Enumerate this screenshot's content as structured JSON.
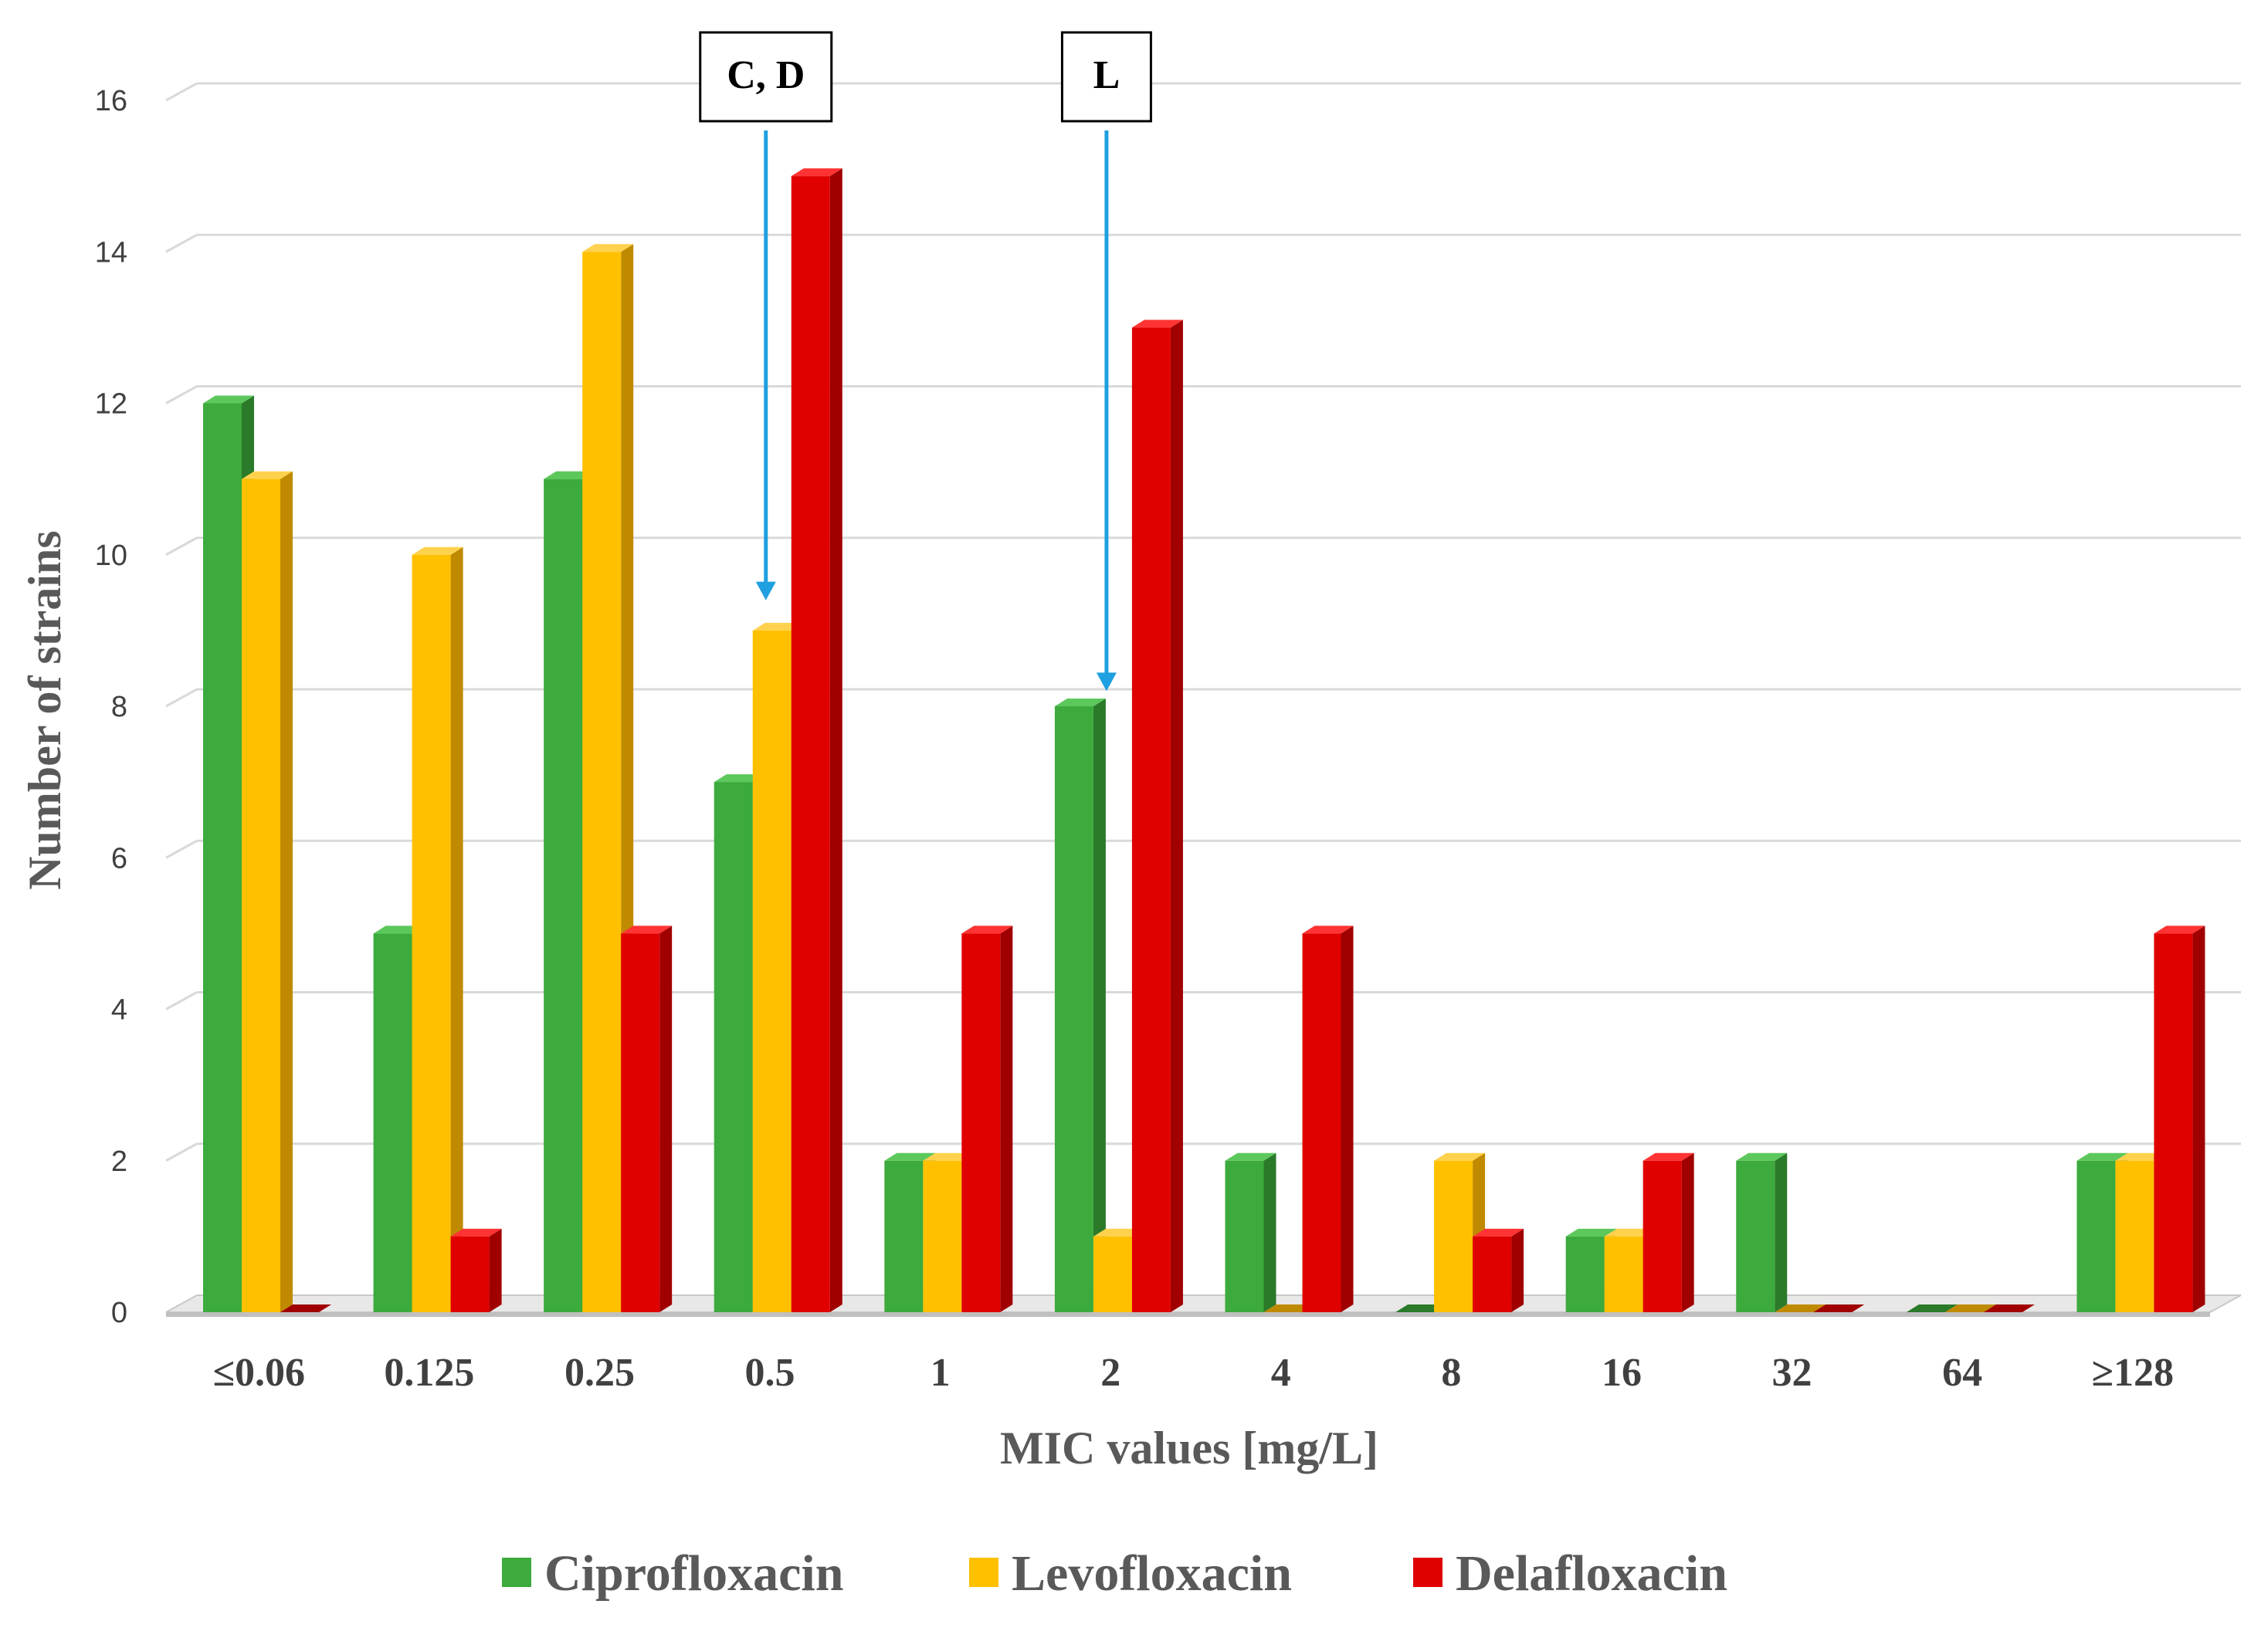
{
  "chart_data": {
    "type": "bar",
    "title": "",
    "xlabel": "MIC values [mg/L]",
    "ylabel": "Number of strains",
    "ylim": [
      0,
      16
    ],
    "yticks": [
      0,
      2,
      4,
      6,
      8,
      10,
      12,
      14,
      16
    ],
    "grid": true,
    "legend_position": "bottom",
    "categories": [
      "≤0.06",
      "0.125",
      "0.25",
      "0.5",
      "1",
      "2",
      "4",
      "8",
      "16",
      "32",
      "64",
      "≥128"
    ],
    "series": [
      {
        "name": "Ciprofloxacin",
        "color": "#3CAA3C",
        "side_color": "#2A7A2A",
        "top_color": "#5CC85C",
        "values": [
          12,
          5,
          11,
          7,
          2,
          8,
          2,
          0,
          1,
          2,
          0,
          2
        ]
      },
      {
        "name": "Levofloxacin",
        "color": "#FFC000",
        "side_color": "#C08A00",
        "top_color": "#FFD24D",
        "values": [
          11,
          10,
          14,
          9,
          2,
          1,
          0,
          2,
          1,
          0,
          0,
          2
        ]
      },
      {
        "name": "Delafloxacin",
        "color": "#E00000",
        "side_color": "#A00000",
        "top_color": "#FF3333",
        "values": [
          0,
          1,
          5,
          15,
          5,
          13,
          5,
          1,
          2,
          0,
          0,
          5
        ]
      }
    ],
    "annotations": [
      {
        "label": "C, D",
        "category": "0.5",
        "points_to_value": 9.4,
        "arrow_color": "#1FA0E0"
      },
      {
        "label": "L",
        "category": "2",
        "points_to_value": 8.2,
        "arrow_color": "#1FA0E0"
      }
    ]
  }
}
